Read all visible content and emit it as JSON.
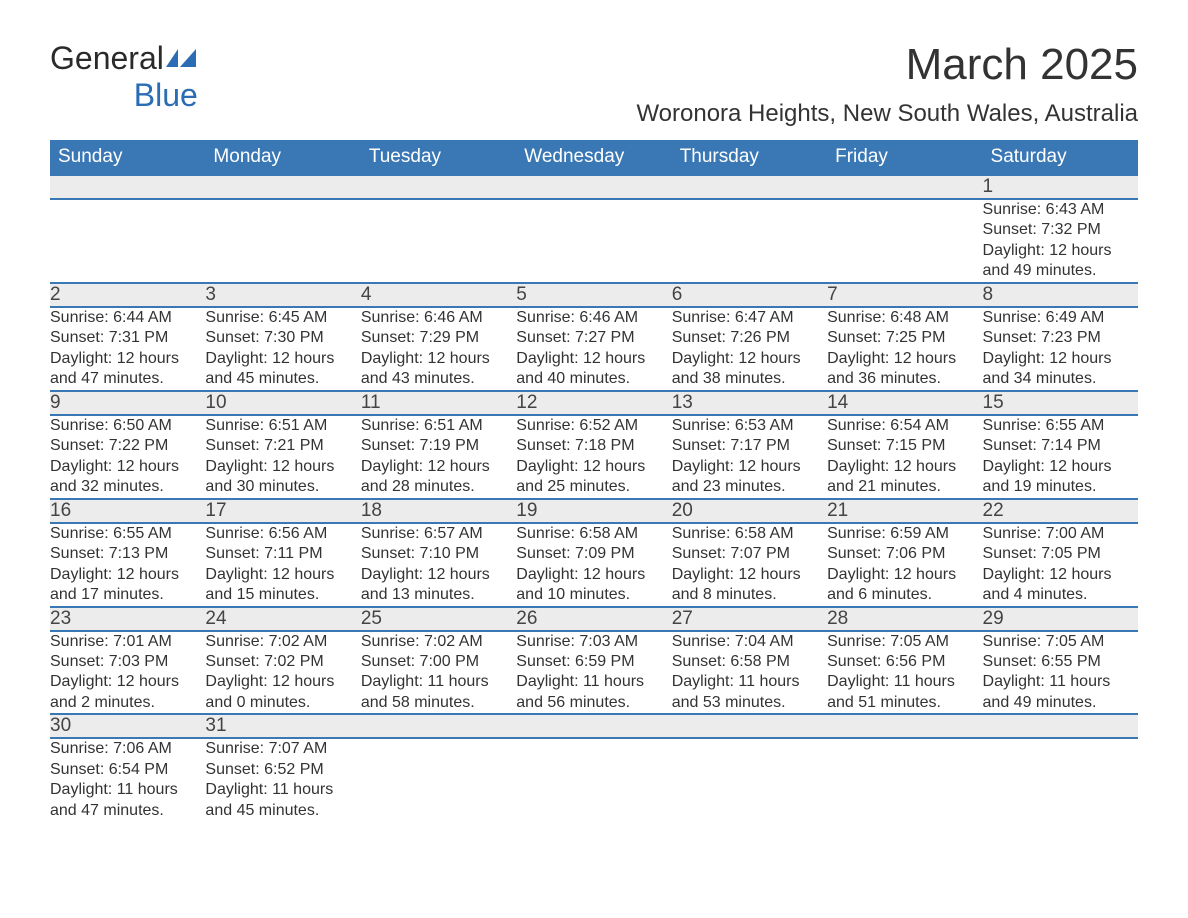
{
  "logo": {
    "word1": "General",
    "word2": "Blue"
  },
  "title": "March 2025",
  "location": "Woronora Heights, New South Wales, Australia",
  "colors": {
    "header_bg": "#3a78b5",
    "header_fg": "#ffffff",
    "daynum_bg": "#ececec",
    "row_border": "#3a78b5",
    "text": "#333333",
    "logo_blue": "#2a6db5"
  },
  "day_headers": [
    "Sunday",
    "Monday",
    "Tuesday",
    "Wednesday",
    "Thursday",
    "Friday",
    "Saturday"
  ],
  "weeks": [
    [
      null,
      null,
      null,
      null,
      null,
      null,
      {
        "n": "1",
        "sunrise": "Sunrise: 6:43 AM",
        "sunset": "Sunset: 7:32 PM",
        "d1": "Daylight: 12 hours",
        "d2": "and 49 minutes."
      }
    ],
    [
      {
        "n": "2",
        "sunrise": "Sunrise: 6:44 AM",
        "sunset": "Sunset: 7:31 PM",
        "d1": "Daylight: 12 hours",
        "d2": "and 47 minutes."
      },
      {
        "n": "3",
        "sunrise": "Sunrise: 6:45 AM",
        "sunset": "Sunset: 7:30 PM",
        "d1": "Daylight: 12 hours",
        "d2": "and 45 minutes."
      },
      {
        "n": "4",
        "sunrise": "Sunrise: 6:46 AM",
        "sunset": "Sunset: 7:29 PM",
        "d1": "Daylight: 12 hours",
        "d2": "and 43 minutes."
      },
      {
        "n": "5",
        "sunrise": "Sunrise: 6:46 AM",
        "sunset": "Sunset: 7:27 PM",
        "d1": "Daylight: 12 hours",
        "d2": "and 40 minutes."
      },
      {
        "n": "6",
        "sunrise": "Sunrise: 6:47 AM",
        "sunset": "Sunset: 7:26 PM",
        "d1": "Daylight: 12 hours",
        "d2": "and 38 minutes."
      },
      {
        "n": "7",
        "sunrise": "Sunrise: 6:48 AM",
        "sunset": "Sunset: 7:25 PM",
        "d1": "Daylight: 12 hours",
        "d2": "and 36 minutes."
      },
      {
        "n": "8",
        "sunrise": "Sunrise: 6:49 AM",
        "sunset": "Sunset: 7:23 PM",
        "d1": "Daylight: 12 hours",
        "d2": "and 34 minutes."
      }
    ],
    [
      {
        "n": "9",
        "sunrise": "Sunrise: 6:50 AM",
        "sunset": "Sunset: 7:22 PM",
        "d1": "Daylight: 12 hours",
        "d2": "and 32 minutes."
      },
      {
        "n": "10",
        "sunrise": "Sunrise: 6:51 AM",
        "sunset": "Sunset: 7:21 PM",
        "d1": "Daylight: 12 hours",
        "d2": "and 30 minutes."
      },
      {
        "n": "11",
        "sunrise": "Sunrise: 6:51 AM",
        "sunset": "Sunset: 7:19 PM",
        "d1": "Daylight: 12 hours",
        "d2": "and 28 minutes."
      },
      {
        "n": "12",
        "sunrise": "Sunrise: 6:52 AM",
        "sunset": "Sunset: 7:18 PM",
        "d1": "Daylight: 12 hours",
        "d2": "and 25 minutes."
      },
      {
        "n": "13",
        "sunrise": "Sunrise: 6:53 AM",
        "sunset": "Sunset: 7:17 PM",
        "d1": "Daylight: 12 hours",
        "d2": "and 23 minutes."
      },
      {
        "n": "14",
        "sunrise": "Sunrise: 6:54 AM",
        "sunset": "Sunset: 7:15 PM",
        "d1": "Daylight: 12 hours",
        "d2": "and 21 minutes."
      },
      {
        "n": "15",
        "sunrise": "Sunrise: 6:55 AM",
        "sunset": "Sunset: 7:14 PM",
        "d1": "Daylight: 12 hours",
        "d2": "and 19 minutes."
      }
    ],
    [
      {
        "n": "16",
        "sunrise": "Sunrise: 6:55 AM",
        "sunset": "Sunset: 7:13 PM",
        "d1": "Daylight: 12 hours",
        "d2": "and 17 minutes."
      },
      {
        "n": "17",
        "sunrise": "Sunrise: 6:56 AM",
        "sunset": "Sunset: 7:11 PM",
        "d1": "Daylight: 12 hours",
        "d2": "and 15 minutes."
      },
      {
        "n": "18",
        "sunrise": "Sunrise: 6:57 AM",
        "sunset": "Sunset: 7:10 PM",
        "d1": "Daylight: 12 hours",
        "d2": "and 13 minutes."
      },
      {
        "n": "19",
        "sunrise": "Sunrise: 6:58 AM",
        "sunset": "Sunset: 7:09 PM",
        "d1": "Daylight: 12 hours",
        "d2": "and 10 minutes."
      },
      {
        "n": "20",
        "sunrise": "Sunrise: 6:58 AM",
        "sunset": "Sunset: 7:07 PM",
        "d1": "Daylight: 12 hours",
        "d2": "and 8 minutes."
      },
      {
        "n": "21",
        "sunrise": "Sunrise: 6:59 AM",
        "sunset": "Sunset: 7:06 PM",
        "d1": "Daylight: 12 hours",
        "d2": "and 6 minutes."
      },
      {
        "n": "22",
        "sunrise": "Sunrise: 7:00 AM",
        "sunset": "Sunset: 7:05 PM",
        "d1": "Daylight: 12 hours",
        "d2": "and 4 minutes."
      }
    ],
    [
      {
        "n": "23",
        "sunrise": "Sunrise: 7:01 AM",
        "sunset": "Sunset: 7:03 PM",
        "d1": "Daylight: 12 hours",
        "d2": "and 2 minutes."
      },
      {
        "n": "24",
        "sunrise": "Sunrise: 7:02 AM",
        "sunset": "Sunset: 7:02 PM",
        "d1": "Daylight: 12 hours",
        "d2": "and 0 minutes."
      },
      {
        "n": "25",
        "sunrise": "Sunrise: 7:02 AM",
        "sunset": "Sunset: 7:00 PM",
        "d1": "Daylight: 11 hours",
        "d2": "and 58 minutes."
      },
      {
        "n": "26",
        "sunrise": "Sunrise: 7:03 AM",
        "sunset": "Sunset: 6:59 PM",
        "d1": "Daylight: 11 hours",
        "d2": "and 56 minutes."
      },
      {
        "n": "27",
        "sunrise": "Sunrise: 7:04 AM",
        "sunset": "Sunset: 6:58 PM",
        "d1": "Daylight: 11 hours",
        "d2": "and 53 minutes."
      },
      {
        "n": "28",
        "sunrise": "Sunrise: 7:05 AM",
        "sunset": "Sunset: 6:56 PM",
        "d1": "Daylight: 11 hours",
        "d2": "and 51 minutes."
      },
      {
        "n": "29",
        "sunrise": "Sunrise: 7:05 AM",
        "sunset": "Sunset: 6:55 PM",
        "d1": "Daylight: 11 hours",
        "d2": "and 49 minutes."
      }
    ],
    [
      {
        "n": "30",
        "sunrise": "Sunrise: 7:06 AM",
        "sunset": "Sunset: 6:54 PM",
        "d1": "Daylight: 11 hours",
        "d2": "and 47 minutes."
      },
      {
        "n": "31",
        "sunrise": "Sunrise: 7:07 AM",
        "sunset": "Sunset: 6:52 PM",
        "d1": "Daylight: 11 hours",
        "d2": "and 45 minutes."
      },
      null,
      null,
      null,
      null,
      null
    ]
  ]
}
